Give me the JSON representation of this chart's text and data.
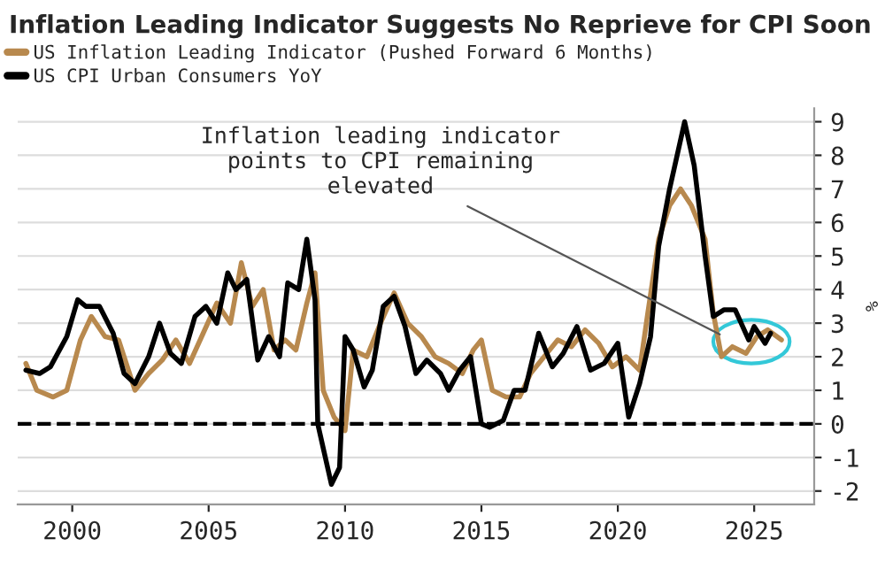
{
  "chart_data": {
    "type": "line",
    "title": "Inflation Leading Indicator Suggests No Reprieve for CPI Soon",
    "ylabel": "%",
    "series": [
      {
        "name": "US Inflation Leading Indicator (Pushed Forward 6 Months)",
        "color": "#b8894e",
        "x": [
          1998.3,
          1998.7,
          1999.3,
          1999.8,
          2000.3,
          2000.7,
          2001.2,
          2001.7,
          2002.3,
          2002.8,
          2003.3,
          2003.8,
          2004.3,
          2004.8,
          2005.3,
          2005.8,
          2006.2,
          2006.6,
          2007.0,
          2007.4,
          2007.8,
          2008.2,
          2008.6,
          2008.9,
          2009.2,
          2009.6,
          2010.0,
          2010.3,
          2010.8,
          2011.3,
          2011.8,
          2012.3,
          2012.8,
          2013.3,
          2013.8,
          2014.3,
          2014.7,
          2015.0,
          2015.4,
          2015.9,
          2016.4,
          2016.8,
          2017.3,
          2017.8,
          2018.3,
          2018.8,
          2019.3,
          2019.8,
          2020.3,
          2020.8,
          2021.1,
          2021.5,
          2021.9,
          2022.3,
          2022.7,
          2023.2,
          2023.5,
          2023.8,
          2024.2,
          2024.7,
          2025.1,
          2025.5,
          2026.0
        ],
        "values": [
          1.8,
          1.0,
          0.8,
          1.0,
          2.5,
          3.2,
          2.6,
          2.5,
          1.0,
          1.5,
          1.9,
          2.5,
          1.8,
          2.7,
          3.6,
          3.0,
          4.8,
          3.5,
          4.0,
          2.2,
          2.5,
          2.2,
          3.6,
          4.5,
          1.0,
          0.2,
          -0.2,
          2.2,
          2.0,
          3.0,
          3.9,
          3.0,
          2.6,
          2.0,
          1.8,
          1.5,
          2.2,
          2.5,
          1.0,
          0.8,
          0.8,
          1.5,
          2.0,
          2.5,
          2.3,
          2.8,
          2.4,
          1.7,
          2.0,
          1.6,
          3.3,
          5.5,
          6.5,
          7.0,
          6.5,
          5.5,
          3.3,
          2.0,
          2.3,
          2.1,
          2.6,
          2.8,
          2.5
        ]
      },
      {
        "name": "US CPI Urban Consumers YoY",
        "color": "#000000",
        "x": [
          1998.3,
          1998.8,
          1999.2,
          1999.8,
          2000.2,
          2000.5,
          2001.0,
          2001.5,
          2001.9,
          2002.3,
          2002.8,
          2003.2,
          2003.6,
          2004.0,
          2004.5,
          2004.9,
          2005.3,
          2005.7,
          2006.0,
          2006.4,
          2006.8,
          2007.2,
          2007.6,
          2007.9,
          2008.3,
          2008.6,
          2008.9,
          2009.0,
          2009.5,
          2009.8,
          2010.0,
          2010.3,
          2010.7,
          2011.0,
          2011.4,
          2011.8,
          2012.2,
          2012.6,
          2013.0,
          2013.5,
          2013.8,
          2014.2,
          2014.6,
          2015.0,
          2015.3,
          2015.8,
          2016.2,
          2016.6,
          2017.1,
          2017.6,
          2018.0,
          2018.5,
          2019.0,
          2019.5,
          2020.0,
          2020.4,
          2020.8,
          2021.2,
          2021.5,
          2021.9,
          2022.45,
          2022.8,
          2023.2,
          2023.5,
          2023.9,
          2024.3,
          2024.8,
          2025.0,
          2025.4,
          2025.6
        ],
        "values": [
          1.6,
          1.5,
          1.7,
          2.6,
          3.7,
          3.5,
          3.5,
          2.7,
          1.5,
          1.2,
          2.0,
          3.0,
          2.1,
          1.8,
          3.2,
          3.5,
          3.0,
          4.5,
          4.0,
          4.3,
          1.9,
          2.6,
          2.0,
          4.2,
          4.0,
          5.5,
          3.7,
          0.0,
          -1.8,
          -1.3,
          2.6,
          2.2,
          1.1,
          1.6,
          3.5,
          3.8,
          2.9,
          1.5,
          1.9,
          1.5,
          1.0,
          1.6,
          2.0,
          0.0,
          -0.1,
          0.1,
          1.0,
          1.0,
          2.7,
          1.7,
          2.1,
          2.9,
          1.6,
          1.8,
          2.4,
          0.2,
          1.2,
          2.6,
          5.3,
          7.0,
          9.0,
          7.7,
          5.0,
          3.2,
          3.4,
          3.4,
          2.5,
          2.9,
          2.4,
          2.7
        ]
      }
    ],
    "xlim": [
      1998.0,
      2027.2
    ],
    "xticks": [
      2000,
      2005,
      2010,
      2015,
      2020,
      2025
    ],
    "ylim": [
      -2.4,
      9.4
    ],
    "yticks": [
      -2,
      -1,
      0,
      1,
      2,
      3,
      4,
      5,
      6,
      7,
      8,
      9
    ],
    "ref_lines": [
      {
        "axis": "y",
        "value": 0,
        "color": "#000000",
        "line_style": "dashed"
      }
    ],
    "annotations": [
      {
        "text": "Inflation leading indicator\npoints to CPI remaining\nelevated",
        "x": 2023.9,
        "y": 2.6
      }
    ],
    "grid": "y",
    "legend": "top left",
    "line_style": "solid",
    "marker": "none"
  }
}
